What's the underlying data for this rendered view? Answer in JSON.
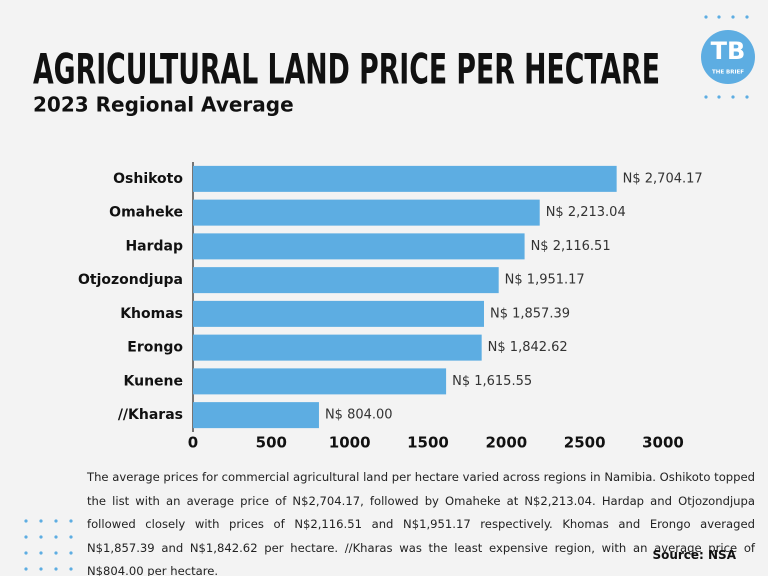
{
  "chart_data": {
    "type": "bar",
    "orientation": "horizontal",
    "title": "AGRICULTURAL LAND PRICE PER HECTARE",
    "subtitle": "2023 Regional Average",
    "categories": [
      "Oshikoto",
      "Omaheke",
      "Hardap",
      "Otjozondjupa",
      "Khomas",
      "Erongo",
      "Kunene",
      "//Kharas"
    ],
    "values": [
      2704.17,
      2213.04,
      2116.51,
      1951.17,
      1857.39,
      1842.62,
      1615.55,
      804.0
    ],
    "value_labels": [
      "N$ 2,704.17",
      "N$ 2,213.04",
      "N$ 2,116.51",
      "N$ 1,951.17",
      "N$ 1,857.39",
      "N$ 1,842.62",
      "N$ 1,615.55",
      "N$ 804.00"
    ],
    "color": "#5dade2",
    "xlim": [
      0,
      3000
    ],
    "xticks": [
      0,
      500,
      1000,
      1500,
      2000,
      2500,
      3000
    ],
    "grid": false
  },
  "logo": {
    "initials": "TB",
    "name": "THE BRIEF"
  },
  "caption": "The average prices for commercial agricultural land per hectare varied across regions in Namibia. Oshikoto topped the list with an average price of N$2,704.17, followed by Omaheke at N$2,213.04. Hardap and Otjozondjupa followed closely with prices of N$2,116.51 and N$1,951.17 respectively. Khomas and Erongo averaged N$1,857.39 and N$1,842.62 per hectare. //Kharas was the least expensive region, with an average price of N$804.00 per hectare.",
  "source": "Source: NSA"
}
